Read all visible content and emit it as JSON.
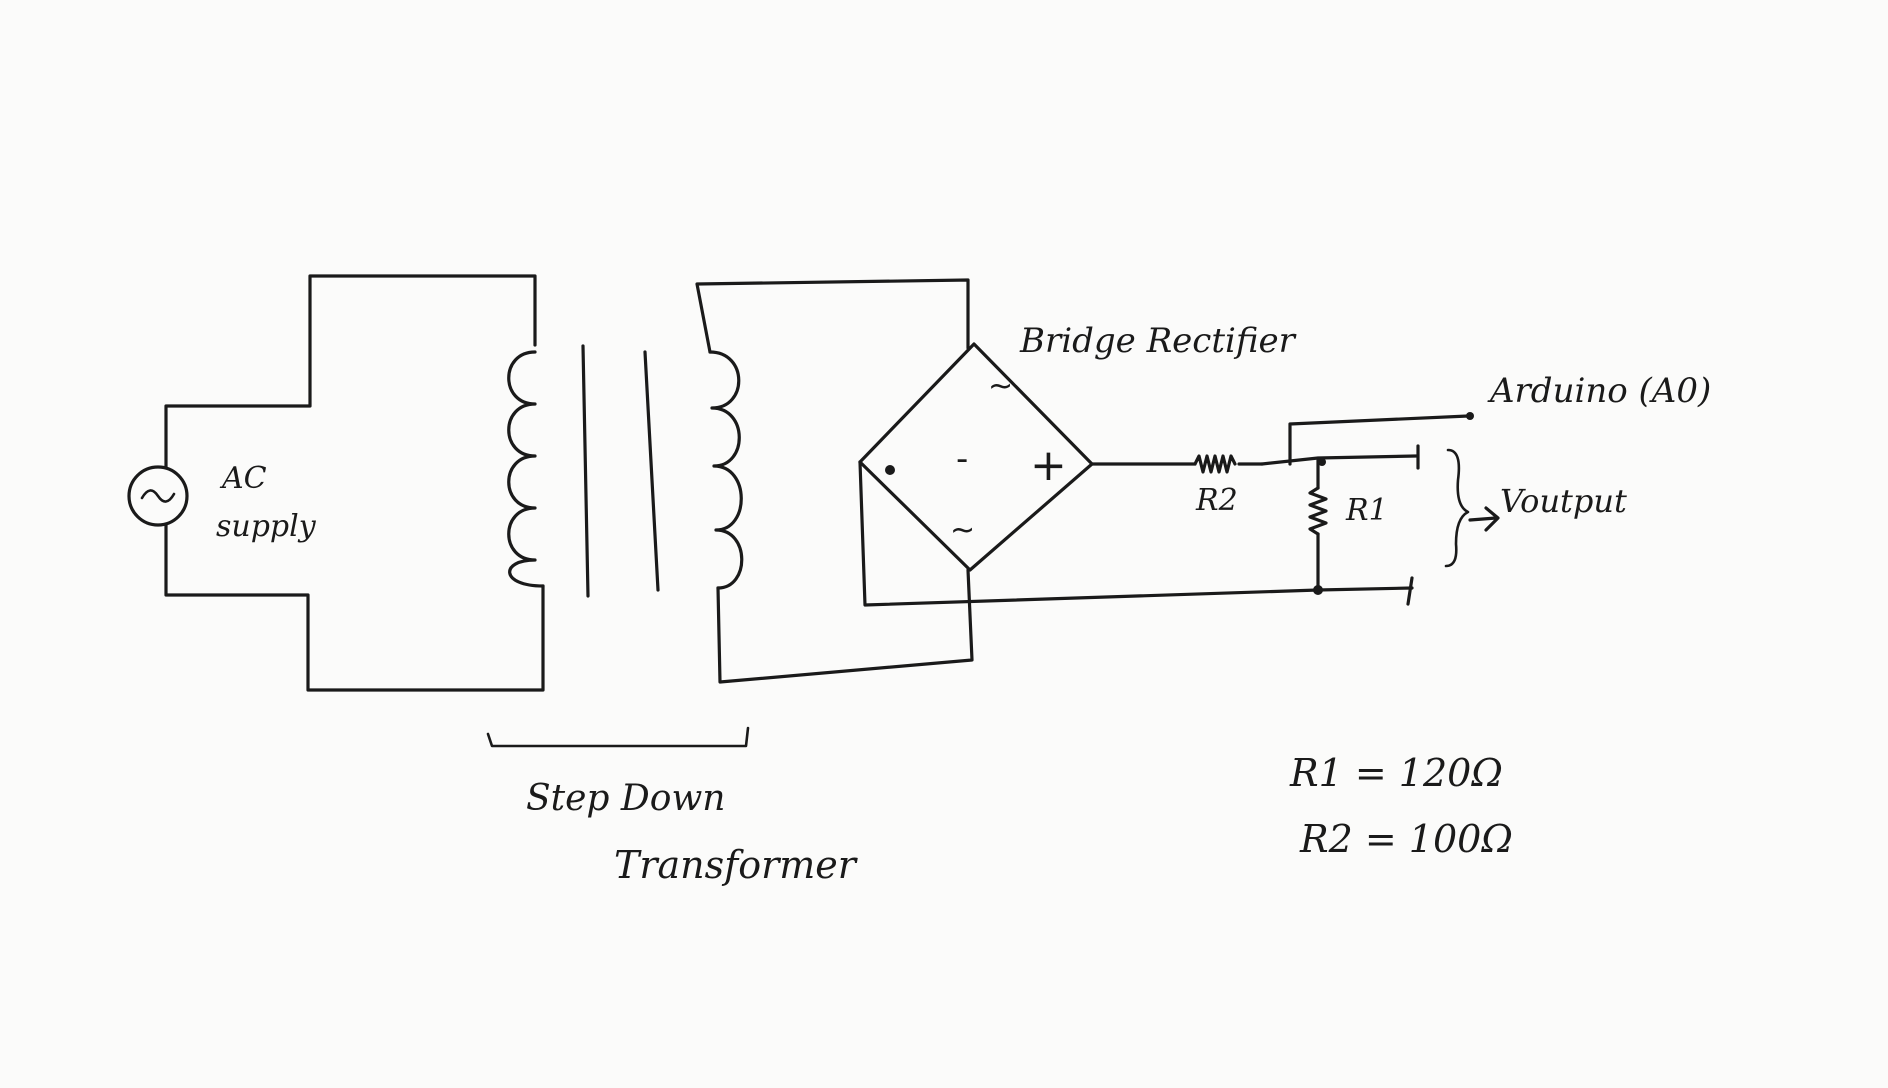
{
  "labels": {
    "source": [
      "AC",
      "supply"
    ],
    "transformer": [
      "Step Down",
      "Transformer"
    ],
    "rectifier": "Bridge Rectifier",
    "arduino": "Arduino (A0)",
    "r2": "R2",
    "r1": "R1",
    "output": "Voutput",
    "values": [
      "R1 = 120Ω",
      "R2 = 100Ω"
    ]
  },
  "bridge_terminals": {
    "top": "~",
    "bottom": "~",
    "left": "-",
    "right": "+"
  },
  "colors": {
    "ink": "#1a1a1a",
    "paper": "#fbfbfa"
  }
}
